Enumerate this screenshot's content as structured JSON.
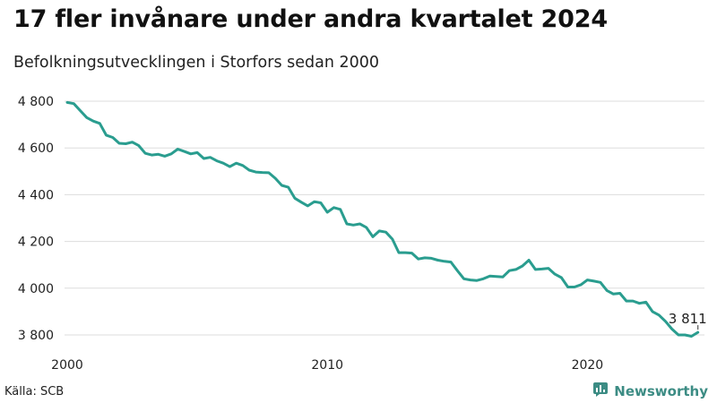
{
  "header": {
    "title": "17 fler invånare under andra kvartalet 2024",
    "subtitle": "Befolkningsutvecklingen i Storfors sedan 2000"
  },
  "footer": {
    "source": "Källa: SCB",
    "brand": "Newsworthy",
    "brand_icon": "bar-chart-logo-icon"
  },
  "colors": {
    "line": "#2a9d8f",
    "grid": "#dddddd",
    "brand": "#3c8c84"
  },
  "chart_data": {
    "type": "line",
    "title": "17 fler invånare under andra kvartalet 2024",
    "subtitle": "Befolkningsutvecklingen i Storfors sedan 2000",
    "xlabel": "",
    "ylabel": "",
    "xlim": [
      2000,
      2024.5
    ],
    "ylim": [
      3750,
      4850
    ],
    "y_ticks": [
      3800,
      4000,
      4200,
      4400,
      4600,
      4800
    ],
    "y_tick_labels": [
      "3 800",
      "4 000",
      "4 200",
      "4 400",
      "4 600",
      "4 800"
    ],
    "x_ticks": [
      2000,
      2010,
      2020
    ],
    "x_tick_labels": [
      "2000",
      "2010",
      "2020"
    ],
    "grid": "horizontal",
    "end_label": "3 811",
    "series": [
      {
        "x": [
          2000.0,
          2000.25,
          2000.5,
          2000.75,
          2001.0,
          2001.25,
          2001.5,
          2001.75,
          2002.0,
          2002.25,
          2002.5,
          2002.75,
          2003.0,
          2003.25,
          2003.5,
          2003.75,
          2004.0,
          2004.25,
          2004.5,
          2004.75,
          2005.0,
          2005.25,
          2005.5,
          2005.75,
          2006.0,
          2006.25,
          2006.5,
          2006.75,
          2007.0,
          2007.25,
          2007.5,
          2007.75,
          2008.0,
          2008.25,
          2008.5,
          2008.75,
          2009.0,
          2009.25,
          2009.5,
          2009.75,
          2010.0,
          2010.25,
          2010.5,
          2010.75,
          2011.0,
          2011.25,
          2011.5,
          2011.75,
          2012.0,
          2012.25,
          2012.5,
          2012.75,
          2013.0,
          2013.25,
          2013.5,
          2013.75,
          2014.0,
          2014.25,
          2014.5,
          2014.75,
          2015.0,
          2015.25,
          2015.5,
          2015.75,
          2016.0,
          2016.25,
          2016.5,
          2016.75,
          2017.0,
          2017.25,
          2017.5,
          2017.75,
          2018.0,
          2018.25,
          2018.5,
          2018.75,
          2019.0,
          2019.25,
          2019.5,
          2019.75,
          2020.0,
          2020.25,
          2020.5,
          2020.75,
          2021.0,
          2021.25,
          2021.5,
          2021.75,
          2022.0,
          2022.25,
          2022.5,
          2022.75,
          2023.0,
          2023.25,
          2023.5,
          2023.75,
          2024.0,
          2024.25
        ],
        "values": [
          4795,
          4790,
          4760,
          4730,
          4715,
          4705,
          4655,
          4645,
          4620,
          4618,
          4625,
          4610,
          4577,
          4570,
          4573,
          4565,
          4575,
          4595,
          4585,
          4575,
          4580,
          4555,
          4560,
          4545,
          4535,
          4520,
          4535,
          4525,
          4505,
          4497,
          4495,
          4494,
          4470,
          4440,
          4432,
          4385,
          4368,
          4352,
          4370,
          4365,
          4325,
          4345,
          4337,
          4275,
          4270,
          4275,
          4260,
          4220,
          4245,
          4240,
          4210,
          4152,
          4152,
          4150,
          4125,
          4130,
          4128,
          4120,
          4115,
          4112,
          4075,
          4040,
          4035,
          4033,
          4040,
          4052,
          4050,
          4048,
          4075,
          4080,
          4095,
          4120,
          4080,
          4082,
          4085,
          4060,
          4045,
          4005,
          4005,
          4015,
          4035,
          4030,
          4025,
          3990,
          3975,
          3978,
          3945,
          3945,
          3935,
          3940,
          3900,
          3885,
          3858,
          3825,
          3800,
          3800,
          3794,
          3811
        ]
      }
    ]
  }
}
